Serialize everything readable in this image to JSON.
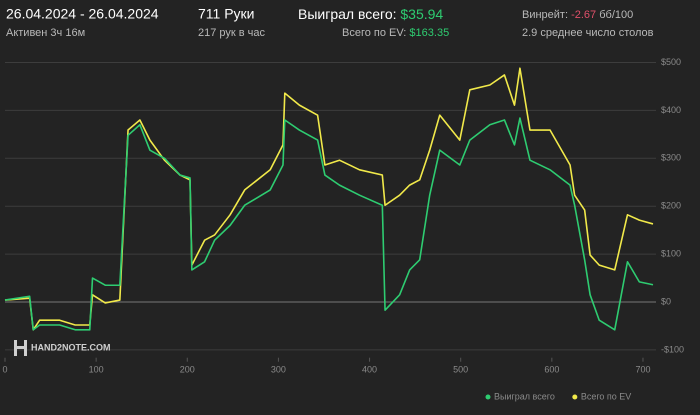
{
  "stats": {
    "date_range": "26.04.2024 - 26.04.2024",
    "active": "Активен 3ч 16м",
    "hands": "711 Руки",
    "hands_per_hour": "217 рук в час",
    "won_label": "Выиграл всего:",
    "won_value": "$35.94",
    "ev_label": "Всего по EV:",
    "ev_value": "$163.35",
    "winrate_label": "Винрейт:",
    "winrate_value": "-2.67",
    "winrate_unit": "бб/100",
    "tables": "2.9 среднее число столов",
    "watermark": "HAND2NOTE.COM"
  },
  "chart_data": {
    "type": "line",
    "x": [
      0,
      27,
      31,
      38,
      60,
      77,
      93,
      96,
      110,
      126,
      135,
      148,
      159,
      175,
      192,
      203,
      205,
      219,
      230,
      247,
      263,
      291,
      305,
      307,
      323,
      343,
      351,
      367,
      389,
      414,
      417,
      433,
      444,
      455,
      466,
      477,
      499,
      510,
      532,
      548,
      559,
      565,
      576,
      598,
      620,
      625,
      636,
      642,
      652,
      669,
      683,
      696,
      711
    ],
    "series": [
      {
        "name": "Выиграл всего",
        "color": "#2ecc71",
        "values": [
          4,
          12,
          -58,
          -48,
          -48,
          -58,
          -58,
          50,
          35,
          35,
          348,
          370,
          317,
          300,
          265,
          259,
          67,
          84,
          129,
          160,
          202,
          234,
          286,
          380,
          359,
          338,
          265,
          244,
          223,
          202,
          -17,
          15,
          67,
          88,
          223,
          317,
          286,
          338,
          370,
          380,
          328,
          384,
          296,
          276,
          244,
          202,
          88,
          15,
          -38,
          -58,
          84,
          42,
          36
        ]
      },
      {
        "name": "Всего по EV",
        "color": "#f1e94a",
        "values": [
          4,
          8,
          -58,
          -38,
          -38,
          -48,
          -48,
          15,
          -2,
          4,
          359,
          380,
          338,
          296,
          265,
          255,
          77,
          129,
          140,
          182,
          234,
          276,
          328,
          436,
          411,
          390,
          286,
          296,
          276,
          265,
          202,
          223,
          244,
          255,
          317,
          390,
          338,
          443,
          453,
          474,
          411,
          488,
          359,
          359,
          286,
          223,
          192,
          98,
          77,
          67,
          182,
          171,
          163
        ]
      }
    ],
    "xlim": [
      0,
      711
    ],
    "xticks": [
      0,
      100,
      200,
      300,
      400,
      500,
      600,
      700
    ],
    "ylim": [
      -110,
      510
    ],
    "yticks": [
      {
        "value": 500,
        "label": "$500"
      },
      {
        "value": 400,
        "label": "$400"
      },
      {
        "value": 300,
        "label": "$300"
      },
      {
        "value": 200,
        "label": "$200"
      },
      {
        "value": 100,
        "label": "$100"
      },
      {
        "value": 0,
        "label": "$0"
      },
      {
        "value": -100,
        "label": "-$100"
      }
    ],
    "grid": true
  }
}
